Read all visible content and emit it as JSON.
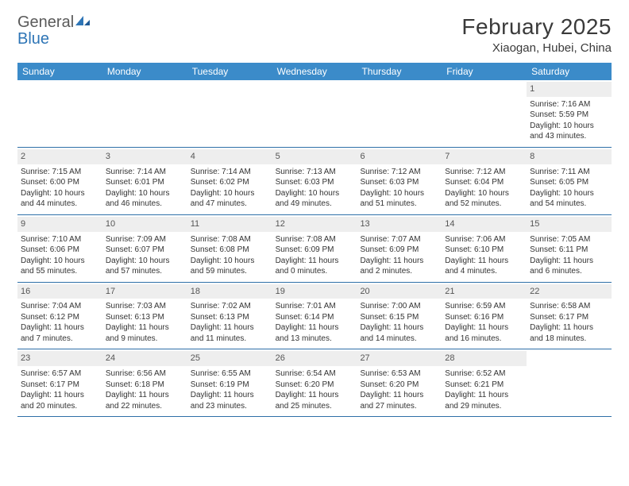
{
  "brand": {
    "word1": "General",
    "word2": "Blue"
  },
  "title": "February 2025",
  "location": "Xiaogan, Hubei, China",
  "colors": {
    "header_bar": "#3b8bc9",
    "week_divider": "#2e6fa8",
    "daynum_bg": "#eeeeee",
    "text": "#333333",
    "brand_gray": "#5a5a5a",
    "brand_blue": "#2e75b6"
  },
  "weekdays": [
    "Sunday",
    "Monday",
    "Tuesday",
    "Wednesday",
    "Thursday",
    "Friday",
    "Saturday"
  ],
  "layout": {
    "first_weekday_index": 6,
    "days_in_month": 28
  },
  "days": {
    "1": {
      "sunrise": "7:16 AM",
      "sunset": "5:59 PM",
      "daylight": "10 hours and 43 minutes."
    },
    "2": {
      "sunrise": "7:15 AM",
      "sunset": "6:00 PM",
      "daylight": "10 hours and 44 minutes."
    },
    "3": {
      "sunrise": "7:14 AM",
      "sunset": "6:01 PM",
      "daylight": "10 hours and 46 minutes."
    },
    "4": {
      "sunrise": "7:14 AM",
      "sunset": "6:02 PM",
      "daylight": "10 hours and 47 minutes."
    },
    "5": {
      "sunrise": "7:13 AM",
      "sunset": "6:03 PM",
      "daylight": "10 hours and 49 minutes."
    },
    "6": {
      "sunrise": "7:12 AM",
      "sunset": "6:03 PM",
      "daylight": "10 hours and 51 minutes."
    },
    "7": {
      "sunrise": "7:12 AM",
      "sunset": "6:04 PM",
      "daylight": "10 hours and 52 minutes."
    },
    "8": {
      "sunrise": "7:11 AM",
      "sunset": "6:05 PM",
      "daylight": "10 hours and 54 minutes."
    },
    "9": {
      "sunrise": "7:10 AM",
      "sunset": "6:06 PM",
      "daylight": "10 hours and 55 minutes."
    },
    "10": {
      "sunrise": "7:09 AM",
      "sunset": "6:07 PM",
      "daylight": "10 hours and 57 minutes."
    },
    "11": {
      "sunrise": "7:08 AM",
      "sunset": "6:08 PM",
      "daylight": "10 hours and 59 minutes."
    },
    "12": {
      "sunrise": "7:08 AM",
      "sunset": "6:09 PM",
      "daylight": "11 hours and 0 minutes."
    },
    "13": {
      "sunrise": "7:07 AM",
      "sunset": "6:09 PM",
      "daylight": "11 hours and 2 minutes."
    },
    "14": {
      "sunrise": "7:06 AM",
      "sunset": "6:10 PM",
      "daylight": "11 hours and 4 minutes."
    },
    "15": {
      "sunrise": "7:05 AM",
      "sunset": "6:11 PM",
      "daylight": "11 hours and 6 minutes."
    },
    "16": {
      "sunrise": "7:04 AM",
      "sunset": "6:12 PM",
      "daylight": "11 hours and 7 minutes."
    },
    "17": {
      "sunrise": "7:03 AM",
      "sunset": "6:13 PM",
      "daylight": "11 hours and 9 minutes."
    },
    "18": {
      "sunrise": "7:02 AM",
      "sunset": "6:13 PM",
      "daylight": "11 hours and 11 minutes."
    },
    "19": {
      "sunrise": "7:01 AM",
      "sunset": "6:14 PM",
      "daylight": "11 hours and 13 minutes."
    },
    "20": {
      "sunrise": "7:00 AM",
      "sunset": "6:15 PM",
      "daylight": "11 hours and 14 minutes."
    },
    "21": {
      "sunrise": "6:59 AM",
      "sunset": "6:16 PM",
      "daylight": "11 hours and 16 minutes."
    },
    "22": {
      "sunrise": "6:58 AM",
      "sunset": "6:17 PM",
      "daylight": "11 hours and 18 minutes."
    },
    "23": {
      "sunrise": "6:57 AM",
      "sunset": "6:17 PM",
      "daylight": "11 hours and 20 minutes."
    },
    "24": {
      "sunrise": "6:56 AM",
      "sunset": "6:18 PM",
      "daylight": "11 hours and 22 minutes."
    },
    "25": {
      "sunrise": "6:55 AM",
      "sunset": "6:19 PM",
      "daylight": "11 hours and 23 minutes."
    },
    "26": {
      "sunrise": "6:54 AM",
      "sunset": "6:20 PM",
      "daylight": "11 hours and 25 minutes."
    },
    "27": {
      "sunrise": "6:53 AM",
      "sunset": "6:20 PM",
      "daylight": "11 hours and 27 minutes."
    },
    "28": {
      "sunrise": "6:52 AM",
      "sunset": "6:21 PM",
      "daylight": "11 hours and 29 minutes."
    }
  },
  "labels": {
    "sunrise": "Sunrise:",
    "sunset": "Sunset:",
    "daylight": "Daylight:"
  }
}
